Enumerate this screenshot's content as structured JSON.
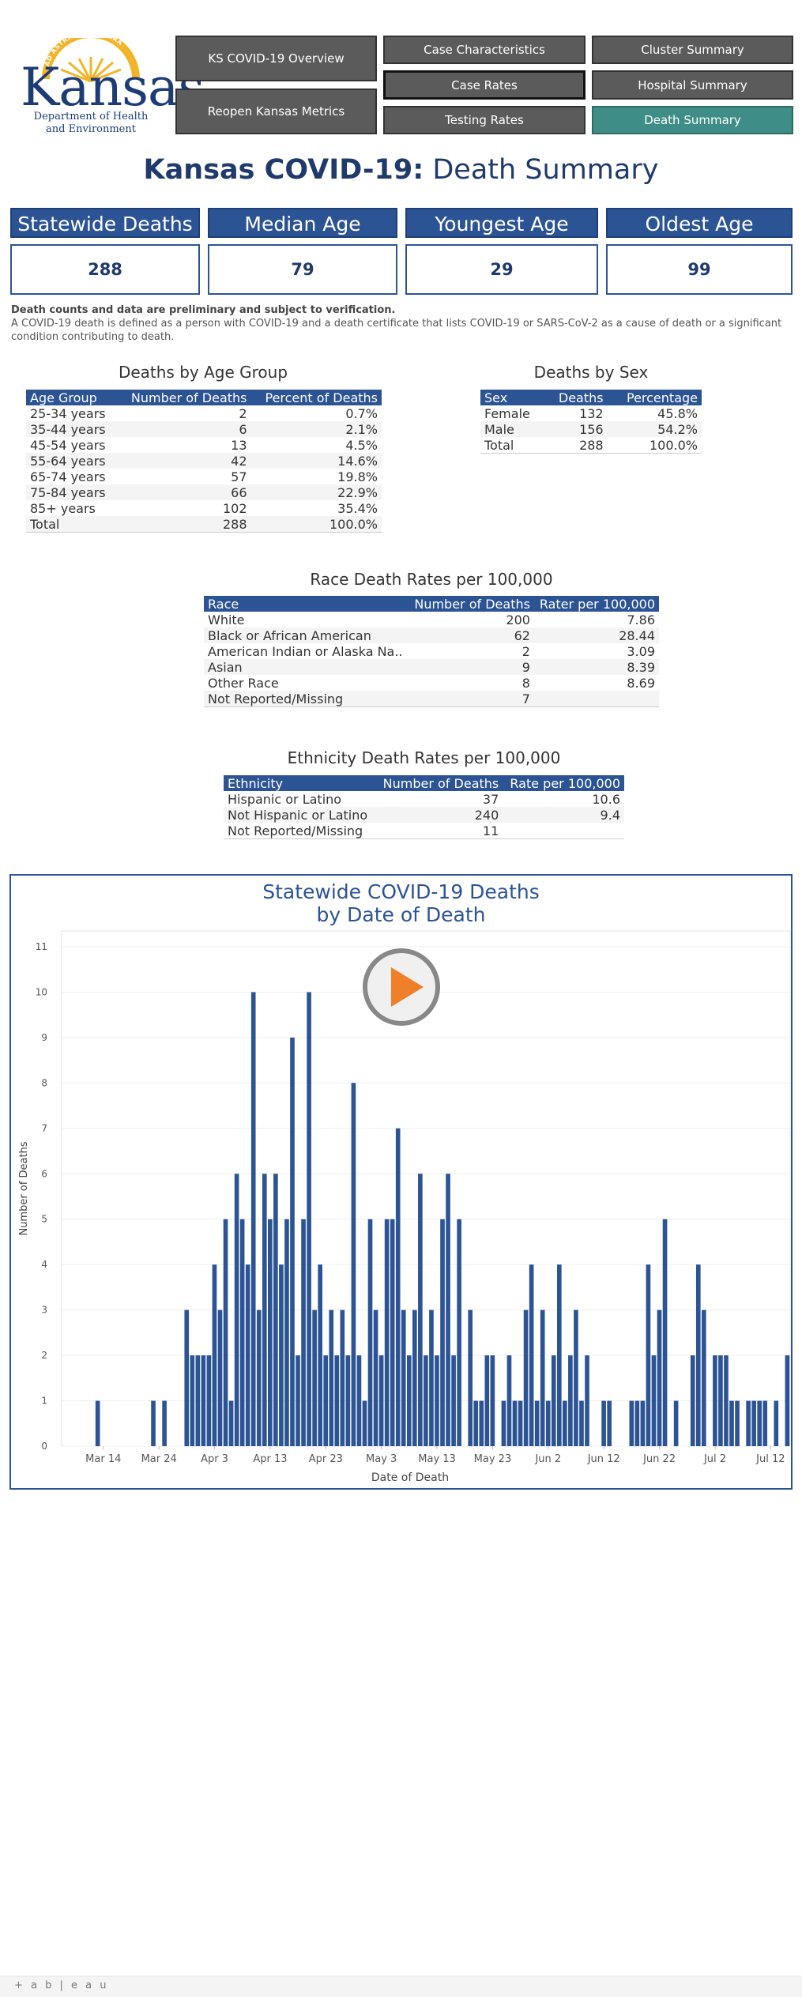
{
  "logo": {
    "seal_text": "AD ASTRA PER ASPERA",
    "name": "Kansas",
    "dept_line1": "Department of Health",
    "dept_line2": "and Environment"
  },
  "nav": {
    "overview": "KS COVID-19 Overview",
    "reopen": "Reopen Kansas Metrics",
    "case_characteristics": "Case Characteristics",
    "case_rates": "Case Rates",
    "testing_rates": "Testing Rates",
    "cluster_summary": "Cluster Summary",
    "hospital_summary": "Hospital Summary",
    "death_summary": "Death Summary"
  },
  "title": {
    "bold": "Kansas COVID-19:",
    "rest": " Death Summary"
  },
  "kpis": {
    "statewide_deaths": {
      "label": "Statewide Deaths",
      "value": "288"
    },
    "median_age": {
      "label": "Median Age",
      "value": "79"
    },
    "youngest_age": {
      "label": "Youngest Age",
      "value": "29"
    },
    "oldest_age": {
      "label": "Oldest Age",
      "value": "99"
    }
  },
  "note": {
    "bold": "Death counts and data are preliminary and subject to verification.",
    "text": "A COVID-19 death is defined as a person with COVID-19 and a death certificate that lists COVID-19 or SARS-CoV-2 as a cause of death or a significant condition contributing to death."
  },
  "age_table": {
    "title": "Deaths by Age Group",
    "headers": [
      "Age Group",
      "Number of Deaths",
      "Percent of Deaths"
    ],
    "rows": [
      [
        "25-34 years",
        "2",
        "0.7%"
      ],
      [
        "35-44 years",
        "6",
        "2.1%"
      ],
      [
        "45-54 years",
        "13",
        "4.5%"
      ],
      [
        "55-64 years",
        "42",
        "14.6%"
      ],
      [
        "65-74 years",
        "57",
        "19.8%"
      ],
      [
        "75-84 years",
        "66",
        "22.9%"
      ],
      [
        "85+ years",
        "102",
        "35.4%"
      ],
      [
        "Total",
        "288",
        "100.0%"
      ]
    ]
  },
  "sex_table": {
    "title": "Deaths by Sex",
    "headers": [
      "Sex",
      "Deaths",
      "Percentage"
    ],
    "rows": [
      [
        "Female",
        "132",
        "45.8%"
      ],
      [
        "Male",
        "156",
        "54.2%"
      ],
      [
        "Total",
        "288",
        "100.0%"
      ]
    ]
  },
  "race_table": {
    "title": "Race Death Rates per 100,000",
    "headers": [
      "Race",
      "Number of Deaths",
      "Rater per 100,000"
    ],
    "rows": [
      [
        "White",
        "200",
        "7.86"
      ],
      [
        "Black or African American",
        "62",
        "28.44"
      ],
      [
        "American Indian or Alaska Na..",
        "2",
        "3.09"
      ],
      [
        "Asian",
        "9",
        "8.39"
      ],
      [
        "Other Race",
        "8",
        "8.69"
      ],
      [
        "Not Reported/Missing",
        "7",
        ""
      ]
    ]
  },
  "ethnicity_table": {
    "title": "Ethnicity Death Rates per 100,000",
    "headers": [
      "Ethnicity",
      "Number of Deaths",
      "Rate per 100,000"
    ],
    "rows": [
      [
        "Hispanic or Latino",
        "37",
        "10.6"
      ],
      [
        "Not Hispanic or Latino",
        "240",
        "9.4"
      ],
      [
        "Not Reported/Missing",
        "11",
        ""
      ]
    ]
  },
  "footer": {
    "brand": "+ a b | e a u"
  },
  "colors": {
    "bar": "#2c5494",
    "accent": "#3e8e87",
    "play": "#f07f2a"
  },
  "play_icon": "play-icon",
  "chart_data": {
    "type": "bar",
    "title": "Statewide COVID-19 Deaths",
    "subtitle": "by Date of Death",
    "xlabel": "Date of Death",
    "ylabel": "Number of Deaths",
    "ylim": [
      0,
      11
    ],
    "yticks": [
      0,
      1,
      2,
      3,
      4,
      5,
      6,
      7,
      8,
      9,
      10,
      11
    ],
    "xtick_labels": [
      "Mar 14",
      "Mar 24",
      "Apr 3",
      "Apr 13",
      "Apr 23",
      "May 3",
      "May 13",
      "May 23",
      "Jun 2",
      "Jun 12",
      "Jun 22",
      "Jul 2",
      "Jul 12"
    ],
    "start_date": "Mar 7",
    "values": [
      0,
      0,
      0,
      0,
      0,
      0,
      1,
      0,
      0,
      0,
      0,
      0,
      0,
      0,
      0,
      0,
      1,
      0,
      1,
      0,
      0,
      0,
      3,
      2,
      2,
      2,
      2,
      4,
      3,
      5,
      1,
      6,
      5,
      4,
      10,
      3,
      6,
      5,
      6,
      4,
      5,
      9,
      2,
      5,
      10,
      3,
      4,
      2,
      3,
      2,
      3,
      2,
      8,
      2,
      1,
      5,
      3,
      2,
      5,
      5,
      7,
      3,
      2,
      3,
      6,
      2,
      3,
      2,
      5,
      6,
      2,
      5,
      0,
      3,
      1,
      1,
      2,
      2,
      0,
      1,
      2,
      1,
      1,
      3,
      4,
      1,
      3,
      1,
      2,
      4,
      1,
      2,
      3,
      1,
      2,
      0,
      0,
      1,
      1,
      0,
      0,
      0,
      1,
      1,
      1,
      4,
      2,
      3,
      5,
      0,
      1,
      0,
      0,
      2,
      4,
      3,
      0,
      2,
      2,
      2,
      1,
      1,
      0,
      1,
      1,
      1,
      1,
      0,
      1,
      0,
      2
    ]
  }
}
